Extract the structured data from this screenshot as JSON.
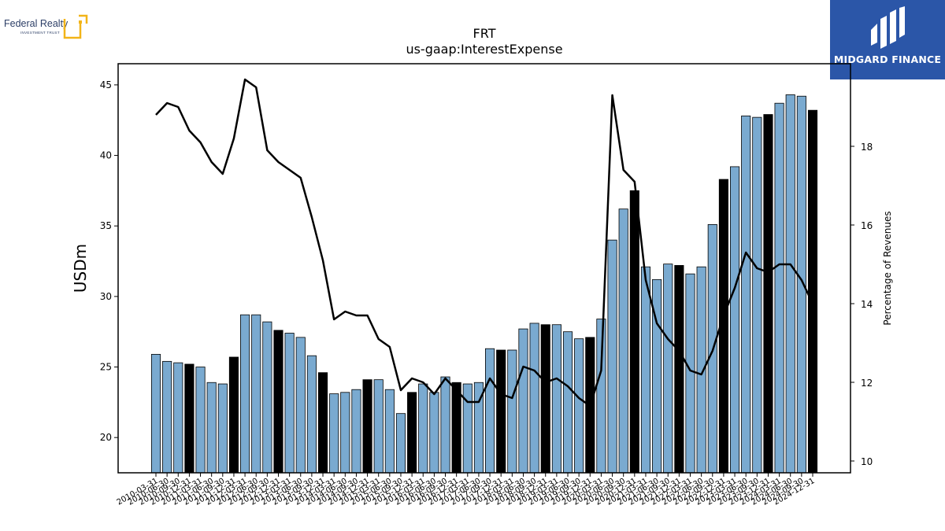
{
  "logos": {
    "left_brand": "Federal Realty",
    "left_sub": "INVESTMENT TRUST",
    "right_brand": "MIDGARD FINANCE"
  },
  "colors": {
    "bar_light": "#7aaad0",
    "bar_dark": "#000000",
    "line": "#000000",
    "right_logo_bg": "#2b56a8",
    "left_logo_accent": "#f2b418"
  },
  "chart_data": {
    "type": "bar",
    "title": "FRT",
    "subtitle": "us-gaap:InterestExpense",
    "ylabel": "USDm",
    "y2label": "Percentage of Revenues",
    "ylim": [
      17.5,
      46.5
    ],
    "y2lim": [
      9.7,
      20.1
    ],
    "yticks": [
      20,
      25,
      30,
      35,
      40,
      45
    ],
    "y2ticks": [
      10,
      12,
      14,
      16,
      18
    ],
    "grid": false,
    "legend": "none",
    "categories": [
      "2010-03-31",
      "2010-06-30",
      "2010-09-30",
      "2010-12-31",
      "2011-03-31",
      "2011-06-30",
      "2011-09-30",
      "2011-12-31",
      "2012-03-31",
      "2012-06-30",
      "2012-09-30",
      "2012-12-31",
      "2013-03-31",
      "2013-06-30",
      "2013-09-30",
      "2013-12-31",
      "2014-03-31",
      "2014-06-30",
      "2014-09-30",
      "2014-12-31",
      "2015-03-31",
      "2015-06-30",
      "2015-09-30",
      "2015-12-31",
      "2016-03-31",
      "2016-06-30",
      "2016-09-30",
      "2016-12-31",
      "2017-03-31",
      "2017-06-30",
      "2017-09-30",
      "2017-12-31",
      "2018-03-31",
      "2018-06-30",
      "2018-09-30",
      "2018-12-31",
      "2019-03-31",
      "2019-06-30",
      "2019-09-30",
      "2019-12-31",
      "2020-03-31",
      "2020-06-30",
      "2020-09-30",
      "2020-12-31",
      "2021-03-31",
      "2021-06-30",
      "2021-09-30",
      "2021-12-31",
      "2022-03-31",
      "2022-06-30",
      "2022-09-30",
      "2022-12-31",
      "2023-03-31",
      "2023-06-30",
      "2023-09-30",
      "2023-12-31",
      "2024-03-31",
      "2024-06-30",
      "2024-09-30",
      "2024-12-31"
    ],
    "series": [
      {
        "axis": "left",
        "kind": "bar",
        "values": [
          25.9,
          25.4,
          25.3,
          25.2,
          25.0,
          23.9,
          23.8,
          25.7,
          28.7,
          28.7,
          28.2,
          27.6,
          27.4,
          27.1,
          25.8,
          24.6,
          23.1,
          23.2,
          23.4,
          24.1,
          24.1,
          23.4,
          21.7,
          23.2,
          23.8,
          23.2,
          24.3,
          23.9,
          23.8,
          23.9,
          26.3,
          26.2,
          26.2,
          27.7,
          28.1,
          28.0,
          28.0,
          27.5,
          27.0,
          27.1,
          28.4,
          34.0,
          36.2,
          37.5,
          32.1,
          31.2,
          32.3,
          32.2,
          31.6,
          32.1,
          35.1,
          38.3,
          39.2,
          42.8,
          42.7,
          42.9,
          43.7,
          44.3,
          44.2,
          43.2
        ],
        "highlight": [
          0,
          0,
          0,
          1,
          0,
          0,
          0,
          1,
          0,
          0,
          0,
          1,
          0,
          0,
          0,
          1,
          0,
          0,
          0,
          1,
          0,
          0,
          0,
          1,
          0,
          0,
          0,
          1,
          0,
          0,
          0,
          1,
          0,
          0,
          0,
          1,
          0,
          0,
          0,
          1,
          0,
          0,
          0,
          1,
          0,
          0,
          0,
          1,
          0,
          0,
          0,
          1,
          0,
          0,
          0,
          1,
          0,
          0,
          0,
          1
        ]
      },
      {
        "axis": "right",
        "kind": "line",
        "values": [
          18.8,
          19.1,
          19.0,
          18.4,
          18.1,
          17.6,
          17.3,
          18.2,
          19.7,
          19.5,
          17.9,
          17.6,
          17.4,
          17.2,
          16.2,
          15.1,
          13.6,
          13.8,
          13.7,
          13.7,
          13.1,
          12.9,
          11.8,
          12.1,
          12.0,
          11.7,
          12.1,
          11.8,
          11.5,
          11.5,
          12.1,
          11.7,
          11.6,
          12.4,
          12.3,
          12.0,
          12.1,
          11.9,
          11.6,
          11.4,
          12.3,
          19.3,
          17.4,
          17.1,
          14.6,
          13.5,
          13.1,
          12.8,
          12.3,
          12.2,
          12.8,
          13.7,
          14.4,
          15.3,
          14.9,
          14.8,
          15.0,
          15.0,
          14.6,
          14.0
        ]
      }
    ]
  }
}
